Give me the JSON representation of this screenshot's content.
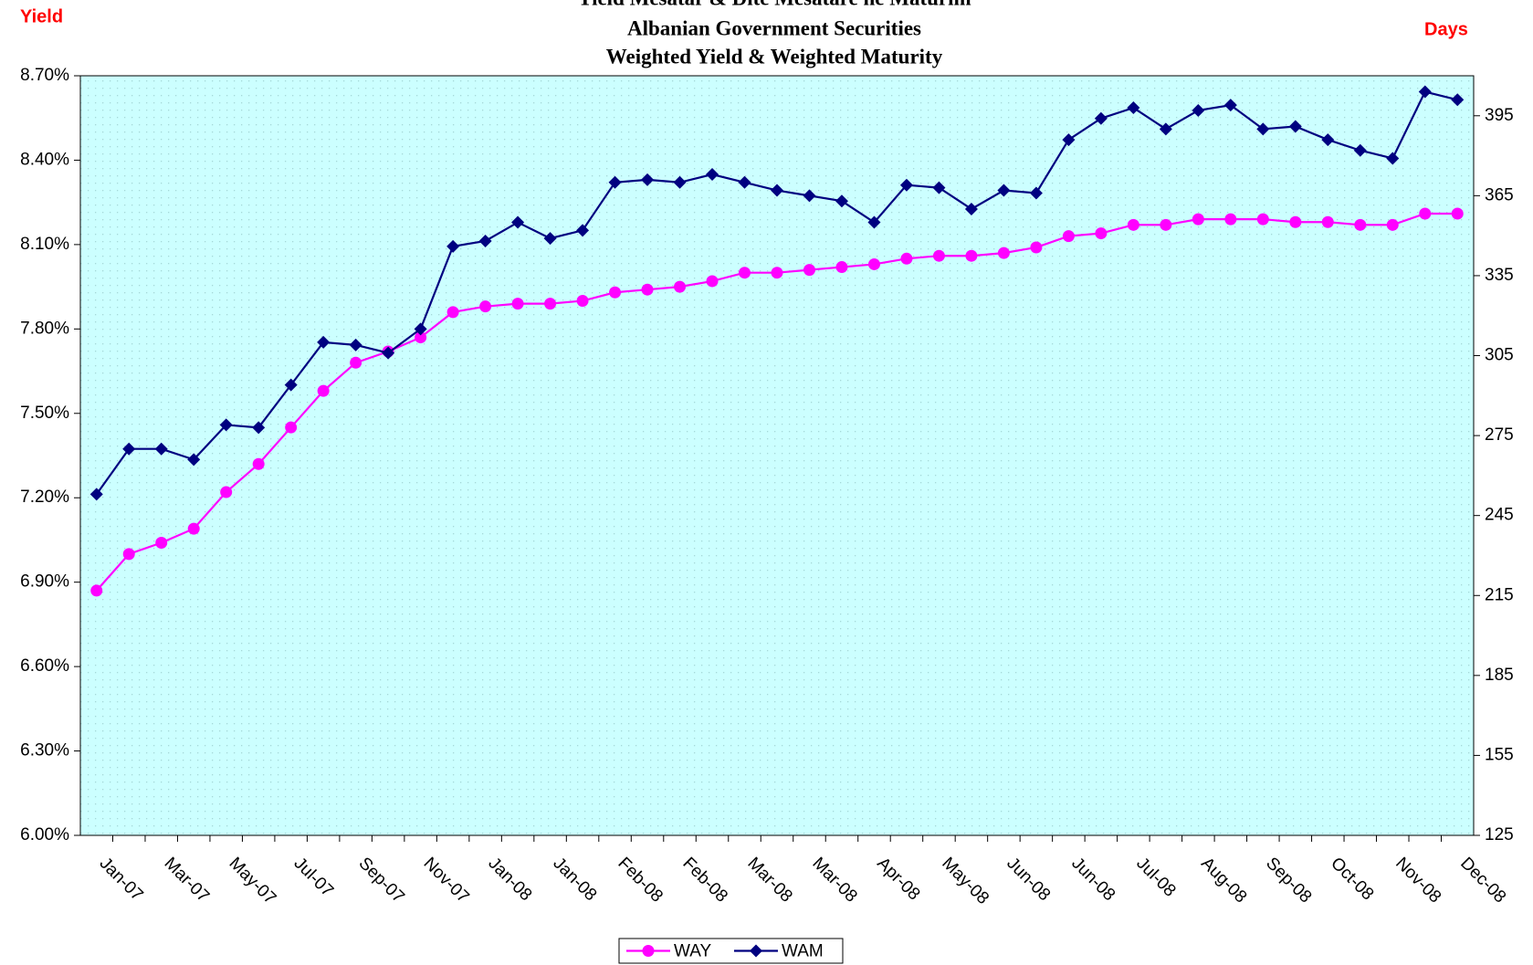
{
  "chart_data": {
    "type": "line",
    "title": [
      "Yield Mesatar & Dite Mesatare ne Maturim",
      "Albanian Government Securities",
      "Weighted Yield & Weighted Maturity"
    ],
    "y_label": "Yield",
    "y2_label": "Days",
    "categories": [
      "Jan-07",
      null,
      "Mar-07",
      null,
      "May-07",
      null,
      "Jul-07",
      null,
      "Sep-07",
      null,
      "Nov-07",
      null,
      "Jan-08",
      null,
      "Jan-08",
      null,
      "Feb-08",
      null,
      "Feb-08",
      null,
      "Mar-08",
      null,
      "Mar-08",
      null,
      "Apr-08",
      null,
      "May-08",
      null,
      "Jun-08",
      null,
      "Jun-08",
      null,
      "Jul-08",
      null,
      "Aug-08",
      null,
      "Sep-08",
      null,
      "Oct-08",
      null,
      "Nov-08",
      null,
      "Dec-08"
    ],
    "series": [
      {
        "name": "WAY",
        "color": "#ff00ff",
        "marker": "circle",
        "values": [
          6.87,
          7.0,
          7.04,
          7.09,
          7.22,
          7.32,
          7.45,
          7.58,
          7.68,
          7.72,
          7.77,
          7.86,
          7.88,
          7.89,
          7.89,
          7.9,
          7.93,
          7.94,
          7.95,
          7.97,
          8.0,
          8.0,
          8.01,
          8.02,
          8.03,
          8.05,
          8.06,
          8.06,
          8.07,
          8.09,
          8.13,
          8.14,
          8.17,
          8.17,
          8.19,
          8.19,
          8.19,
          8.18,
          8.18,
          8.17,
          8.17,
          8.21,
          8.21
        ]
      },
      {
        "name": "WAM",
        "color": "#000080",
        "marker": "diamond",
        "axis": "y2",
        "values": [
          253,
          270,
          270,
          266,
          279,
          278,
          294,
          310,
          309,
          306,
          315,
          346,
          348,
          355,
          349,
          352,
          370,
          371,
          370,
          373,
          370,
          367,
          365,
          363,
          355,
          369,
          368,
          360,
          367,
          366,
          386,
          394,
          398,
          390,
          397,
          399,
          390,
          391,
          386,
          382,
          379,
          404,
          401
        ]
      }
    ],
    "ylim": [
      6.0,
      8.7
    ],
    "yticks": [
      {
        "value": 6.0,
        "label": "6.00%"
      },
      {
        "value": 6.3,
        "label": "6.30%"
      },
      {
        "value": 6.6,
        "label": "6.60%"
      },
      {
        "value": 6.9,
        "label": "6.90%"
      },
      {
        "value": 7.2,
        "label": "7.20%"
      },
      {
        "value": 7.5,
        "label": "7.50%"
      },
      {
        "value": 7.8,
        "label": "7.80%"
      },
      {
        "value": 8.1,
        "label": "8.10%"
      },
      {
        "value": 8.4,
        "label": "8.40%"
      },
      {
        "value": 8.7,
        "label": "8.70%"
      }
    ],
    "y2lim": [
      125,
      410
    ],
    "y2ticks": [
      125,
      155,
      185,
      215,
      245,
      275,
      305,
      335,
      365,
      395
    ],
    "legend": "bottom",
    "background": "#ccffff"
  }
}
